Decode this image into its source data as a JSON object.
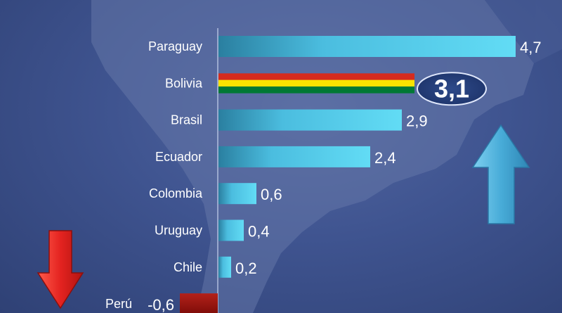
{
  "chart_data": {
    "type": "bar",
    "orientation": "horizontal",
    "categories": [
      "Paraguay",
      "Bolivia",
      "Brasil",
      "Ecuador",
      "Colombia",
      "Uruguay",
      "Chile",
      "Perú"
    ],
    "values": [
      4.7,
      3.1,
      2.9,
      2.4,
      0.6,
      0.4,
      0.2,
      -0.6
    ],
    "value_labels": [
      "4,7",
      "3,1",
      "2,9",
      "2,4",
      "0,6",
      "0,4",
      "0,2",
      "-0,6"
    ],
    "highlight_category": "Bolivia",
    "xlim": [
      -0.6,
      4.7
    ],
    "grid": false,
    "legend": "none"
  },
  "colors": {
    "positive_bar": "#5fd3ee",
    "positive_bar_dark": "#2f8fae",
    "negative_bar": "#a8140f",
    "flag_red": "#d52b1e",
    "flag_yellow": "#f9e300",
    "flag_green": "#007934",
    "up_arrow": "#4bb3df",
    "down_arrow": "#e62424"
  },
  "icons": {
    "up": "up-arrow-icon",
    "down": "down-arrow-icon"
  }
}
